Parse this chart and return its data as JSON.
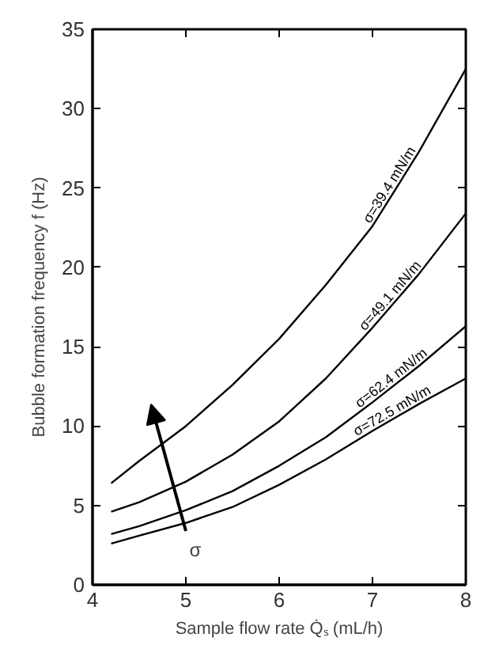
{
  "chart_data": {
    "type": "line",
    "xlabel": "Sample flow rate Q̇ₛ (mL/h)",
    "ylabel": "Bubble formation frequency f (Hz)",
    "x": [
      4.2,
      4.5,
      5,
      5.5,
      6,
      6.5,
      7,
      7.5,
      8
    ],
    "series": [
      {
        "name": "σ=39.4 mN/m",
        "color": "#000000",
        "values": [
          6.4,
          7.8,
          10.0,
          12.6,
          15.5,
          18.9,
          22.6,
          27.3,
          32.5
        ]
      },
      {
        "name": "σ=49.1 mN/m",
        "color": "#000000",
        "values": [
          4.6,
          5.2,
          6.5,
          8.2,
          10.3,
          13.0,
          16.2,
          19.6,
          23.4
        ]
      },
      {
        "name": "σ=62.4 mN/m",
        "color": "#000000",
        "values": [
          3.2,
          3.7,
          4.7,
          5.9,
          7.5,
          9.3,
          11.5,
          13.8,
          16.3
        ]
      },
      {
        "name": "σ=72.5 mN/m",
        "color": "#000000",
        "values": [
          2.6,
          3.1,
          3.9,
          4.9,
          6.3,
          7.9,
          9.7,
          11.4,
          13.0
        ]
      }
    ],
    "annotations": [
      "σ"
    ],
    "xlim": [
      4,
      8
    ],
    "ylim": [
      0,
      35
    ],
    "xticks": [
      4,
      5,
      6,
      7,
      8
    ],
    "yticks": [
      0,
      5,
      10,
      15,
      20,
      25,
      30,
      35
    ],
    "grid": false,
    "legend": false,
    "marker": "none",
    "line_style": "solid"
  }
}
